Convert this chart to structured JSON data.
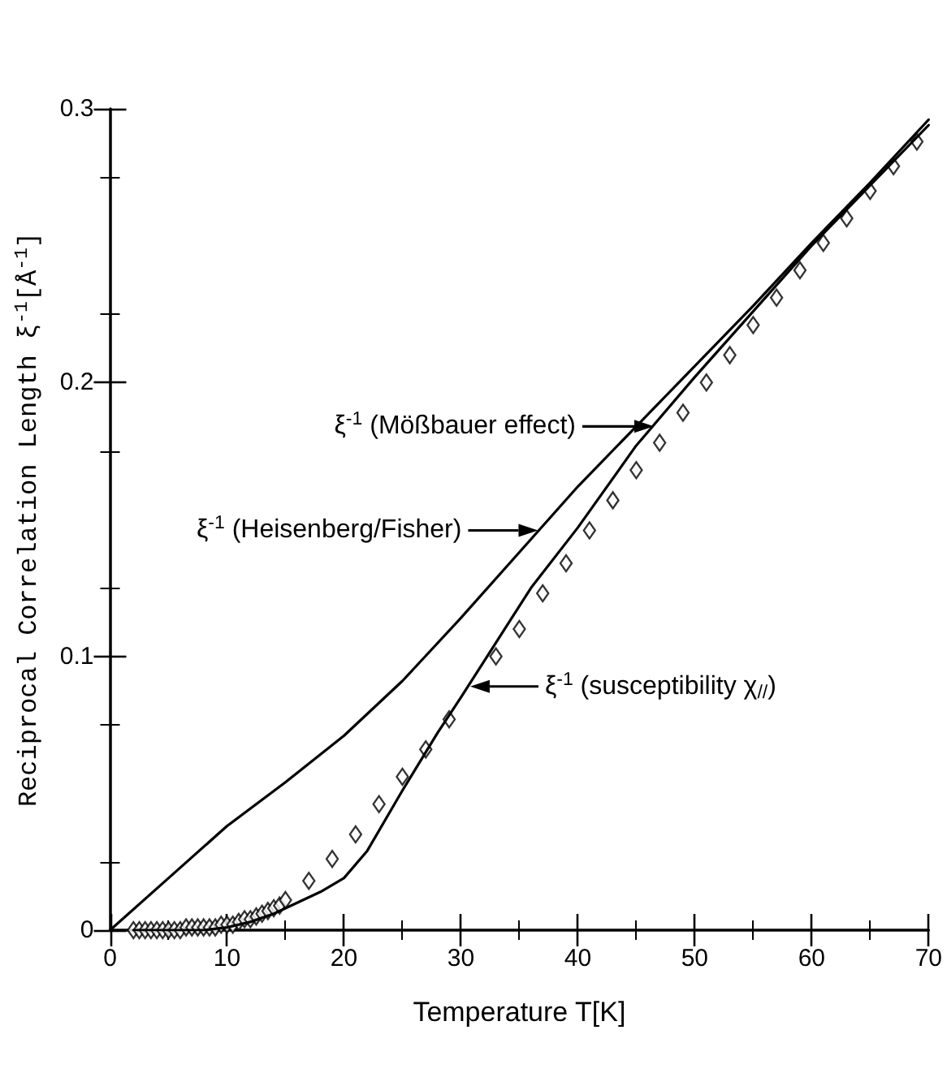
{
  "chart_data": {
    "type": "line",
    "xlabel": "Temperature T[K]",
    "ylabel": "Reciprocal Correlation Length ξ$^{-1}$[Å$^{-1}$]",
    "xlim": [
      0,
      70
    ],
    "xticks": [
      0,
      10,
      20,
      30,
      40,
      50,
      60,
      70
    ],
    "ylim": [
      0,
      0.3
    ],
    "yticks": [
      0,
      0.1,
      0.2,
      0.3
    ],
    "grid": false,
    "line_style": "solid",
    "series": [
      {
        "type": "scatter",
        "marker": "diamond",
        "color": "#000000",
        "x": [
          2,
          2.5,
          3,
          3.5,
          4,
          4.5,
          5,
          5.5,
          6,
          6.5,
          7,
          7.5,
          8,
          8.5,
          9,
          9.5,
          10,
          10.5,
          11,
          11.5,
          12,
          12.5,
          13,
          13.5,
          14,
          14.5,
          15,
          17,
          19,
          21,
          23,
          25,
          27,
          29,
          33,
          35,
          37,
          39,
          41,
          43,
          45,
          47,
          49,
          51,
          53,
          55,
          57,
          59,
          61,
          63,
          65,
          67,
          69
        ],
        "values": [
          0,
          0,
          0,
          0,
          0,
          0,
          0,
          0,
          0,
          0.001,
          0.001,
          0.001,
          0.001,
          0.001,
          0.001,
          0.002,
          0.002,
          0.002,
          0.003,
          0.004,
          0.004,
          0.005,
          0.006,
          0.007,
          0.008,
          0.009,
          0.011,
          0.018,
          0.026,
          0.035,
          0.046,
          0.056,
          0.066,
          0.077,
          0.1,
          0.11,
          0.123,
          0.134,
          0.146,
          0.157,
          0.168,
          0.178,
          0.189,
          0.2,
          0.21,
          0.221,
          0.231,
          0.241,
          0.251,
          0.26,
          0.27,
          0.279,
          0.288
        ]
      },
      {
        "type": "line",
        "marker": "none",
        "color": "#000000",
        "x": [
          0,
          5,
          10,
          15,
          20,
          25,
          30,
          35,
          40,
          45,
          50,
          55,
          60,
          65,
          70
        ],
        "values": [
          0,
          0.019,
          0.038,
          0.054,
          0.071,
          0.091,
          0.114,
          0.138,
          0.162,
          0.184,
          0.206,
          0.228,
          0.251,
          0.273,
          0.296
        ]
      },
      {
        "type": "line",
        "marker": "none",
        "color": "#000000",
        "x": [
          2,
          8,
          10,
          12,
          14,
          16,
          18,
          20,
          22,
          25,
          28,
          30,
          33,
          36,
          40,
          45,
          50,
          55,
          60,
          65,
          70
        ],
        "values": [
          0,
          0,
          0.001,
          0.003,
          0.006,
          0.01,
          0.014,
          0.019,
          0.029,
          0.051,
          0.072,
          0.085,
          0.105,
          0.125,
          0.147,
          0.177,
          0.202,
          0.226,
          0.25,
          0.272,
          0.294
        ]
      }
    ],
    "annotations": [
      {
        "text": "ξ$^{-1}$ (Mößbauer effect)",
        "x": 46.5,
        "y": 0.184
      },
      {
        "text": "ξ$^{-1}$ (Heisenberg/Fisher)",
        "x": 36.6,
        "y": 0.146
      },
      {
        "text": "ξ$^{-1}$ (susceptibility χ$_{//}$)",
        "x": 30.8,
        "y": 0.089
      }
    ]
  }
}
